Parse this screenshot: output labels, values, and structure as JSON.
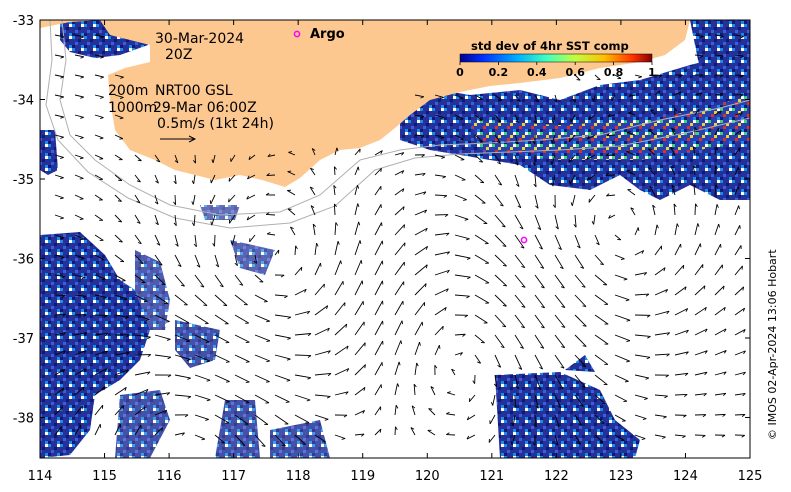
{
  "map": {
    "date": "30-Mar-2024",
    "hour": "20Z",
    "isobath_200": "200m",
    "isobath_1000": "1000m",
    "product": "NRT00 GSL",
    "current_time": "29-Mar 06:00Z",
    "scale_label": "0.5m/s (1kt 24h)",
    "argo_label": "Argo",
    "credit": "© IMOS 02-Apr-2024 13:06 Hobart"
  },
  "colorbar": {
    "title": "std dev of 4hr SST comp",
    "ticks": [
      "0",
      "0.2",
      "0.4",
      "0.6",
      "0.8",
      "1"
    ],
    "colors": [
      "#00008f",
      "#0040ff",
      "#00c0ff",
      "#40ffbf",
      "#c0ff40",
      "#ffc000",
      "#ff4000",
      "#800000"
    ]
  },
  "axes": {
    "x_ticks": [
      "114",
      "115",
      "116",
      "117",
      "118",
      "119",
      "120",
      "121",
      "122",
      "123",
      "124",
      "125"
    ],
    "y_ticks": [
      "-33",
      "-34",
      "-35",
      "-36",
      "-37",
      "-38"
    ]
  },
  "colors": {
    "land": "#fdc890",
    "sst_dark": "#1e2f9e",
    "sst_mid": "#1c7fe0",
    "argo": "#ff00ff"
  }
}
